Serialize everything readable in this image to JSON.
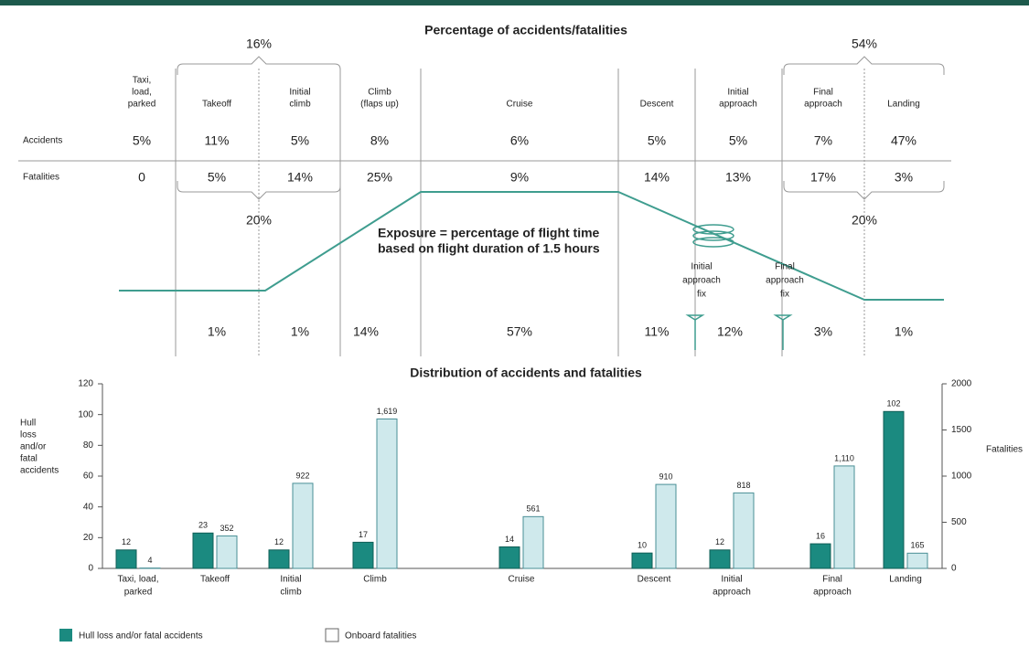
{
  "table": {
    "title": "Percentage of accidents/fatalities",
    "phases": [
      [
        "Taxi,",
        "load,",
        "parked"
      ],
      [
        "Takeoff"
      ],
      [
        "Initial",
        "climb"
      ],
      [
        "Climb",
        "(flaps up)"
      ],
      [
        "Cruise"
      ],
      [
        "Descent"
      ],
      [
        "Initial",
        "approach"
      ],
      [
        "Final",
        "approach"
      ],
      [
        "Landing"
      ]
    ],
    "row_labels": [
      "Accidents",
      "Fatalities"
    ],
    "accidents": {
      "values": [
        5,
        11,
        5,
        8,
        6,
        5,
        5,
        7,
        47
      ],
      "value_labels": [
        "5%",
        "11%",
        "5%",
        "8%",
        "6%",
        "5%",
        "5%",
        "7%",
        "47%"
      ]
    },
    "fatalities": {
      "values": [
        0,
        5,
        14,
        25,
        9,
        14,
        13,
        17,
        3
      ],
      "value_labels": [
        "0",
        "5%",
        "14%",
        "25%",
        "9%",
        "14%",
        "13%",
        "17%",
        "3%"
      ]
    },
    "groups": [
      {
        "accidents": {
          "value": 16,
          "label": "16%"
        },
        "fatalities": {
          "value": 20,
          "label": "20%"
        }
      },
      {
        "accidents": {
          "value": 54,
          "label": "54%"
        },
        "fatalities": {
          "value": 20,
          "label": "20%"
        }
      }
    ],
    "exposure": {
      "label": [
        "Exposure = percentage of flight time",
        "based on flight duration of 1.5 hours"
      ],
      "values": [
        null,
        1,
        1,
        14,
        57,
        11,
        12,
        3,
        1
      ],
      "value_labels": [
        null,
        "1%",
        "1%",
        "14%",
        "57%",
        "11%",
        "12%",
        "3%",
        "1%"
      ]
    },
    "fixes": [
      [
        "Initial",
        "approach",
        "fix"
      ],
      [
        "Final",
        "approach",
        "fix"
      ]
    ]
  },
  "chart_data": {
    "type": "bar",
    "title": "Distribution of accidents and fatalities",
    "categories": [
      [
        "Taxi, load,",
        "parked"
      ],
      [
        "Takeoff"
      ],
      [
        "Initial",
        "climb"
      ],
      [
        "Climb"
      ],
      [
        "Cruise"
      ],
      [
        "Descent"
      ],
      [
        "Initial",
        "approach"
      ],
      [
        "Final",
        "approach"
      ],
      [
        "Landing"
      ]
    ],
    "y_label": [
      "Hull",
      "loss",
      "and/or",
      "fatal",
      "accidents"
    ],
    "y2_label": "Fatalities",
    "ylim": [
      0,
      120
    ],
    "yticks": [
      0,
      20,
      40,
      60,
      80,
      100,
      120
    ],
    "y2lim": [
      0,
      2000
    ],
    "y2ticks": [
      0,
      500,
      1000,
      1500,
      2000
    ],
    "series": [
      {
        "name": "Hull loss and/or fatal accidents",
        "color": "#1b8a80",
        "values": [
          12,
          23,
          12,
          17,
          14,
          10,
          12,
          16,
          102
        ]
      },
      {
        "name": "Onboard fatalities",
        "color": "#cfe9ec",
        "axis": "y2",
        "values": [
          4,
          352,
          922,
          1619,
          561,
          910,
          818,
          1110,
          165
        ],
        "value_labels": [
          "4",
          "352",
          "922",
          "1,619",
          "561",
          "910",
          "818",
          "1,110",
          "165"
        ]
      }
    ]
  }
}
